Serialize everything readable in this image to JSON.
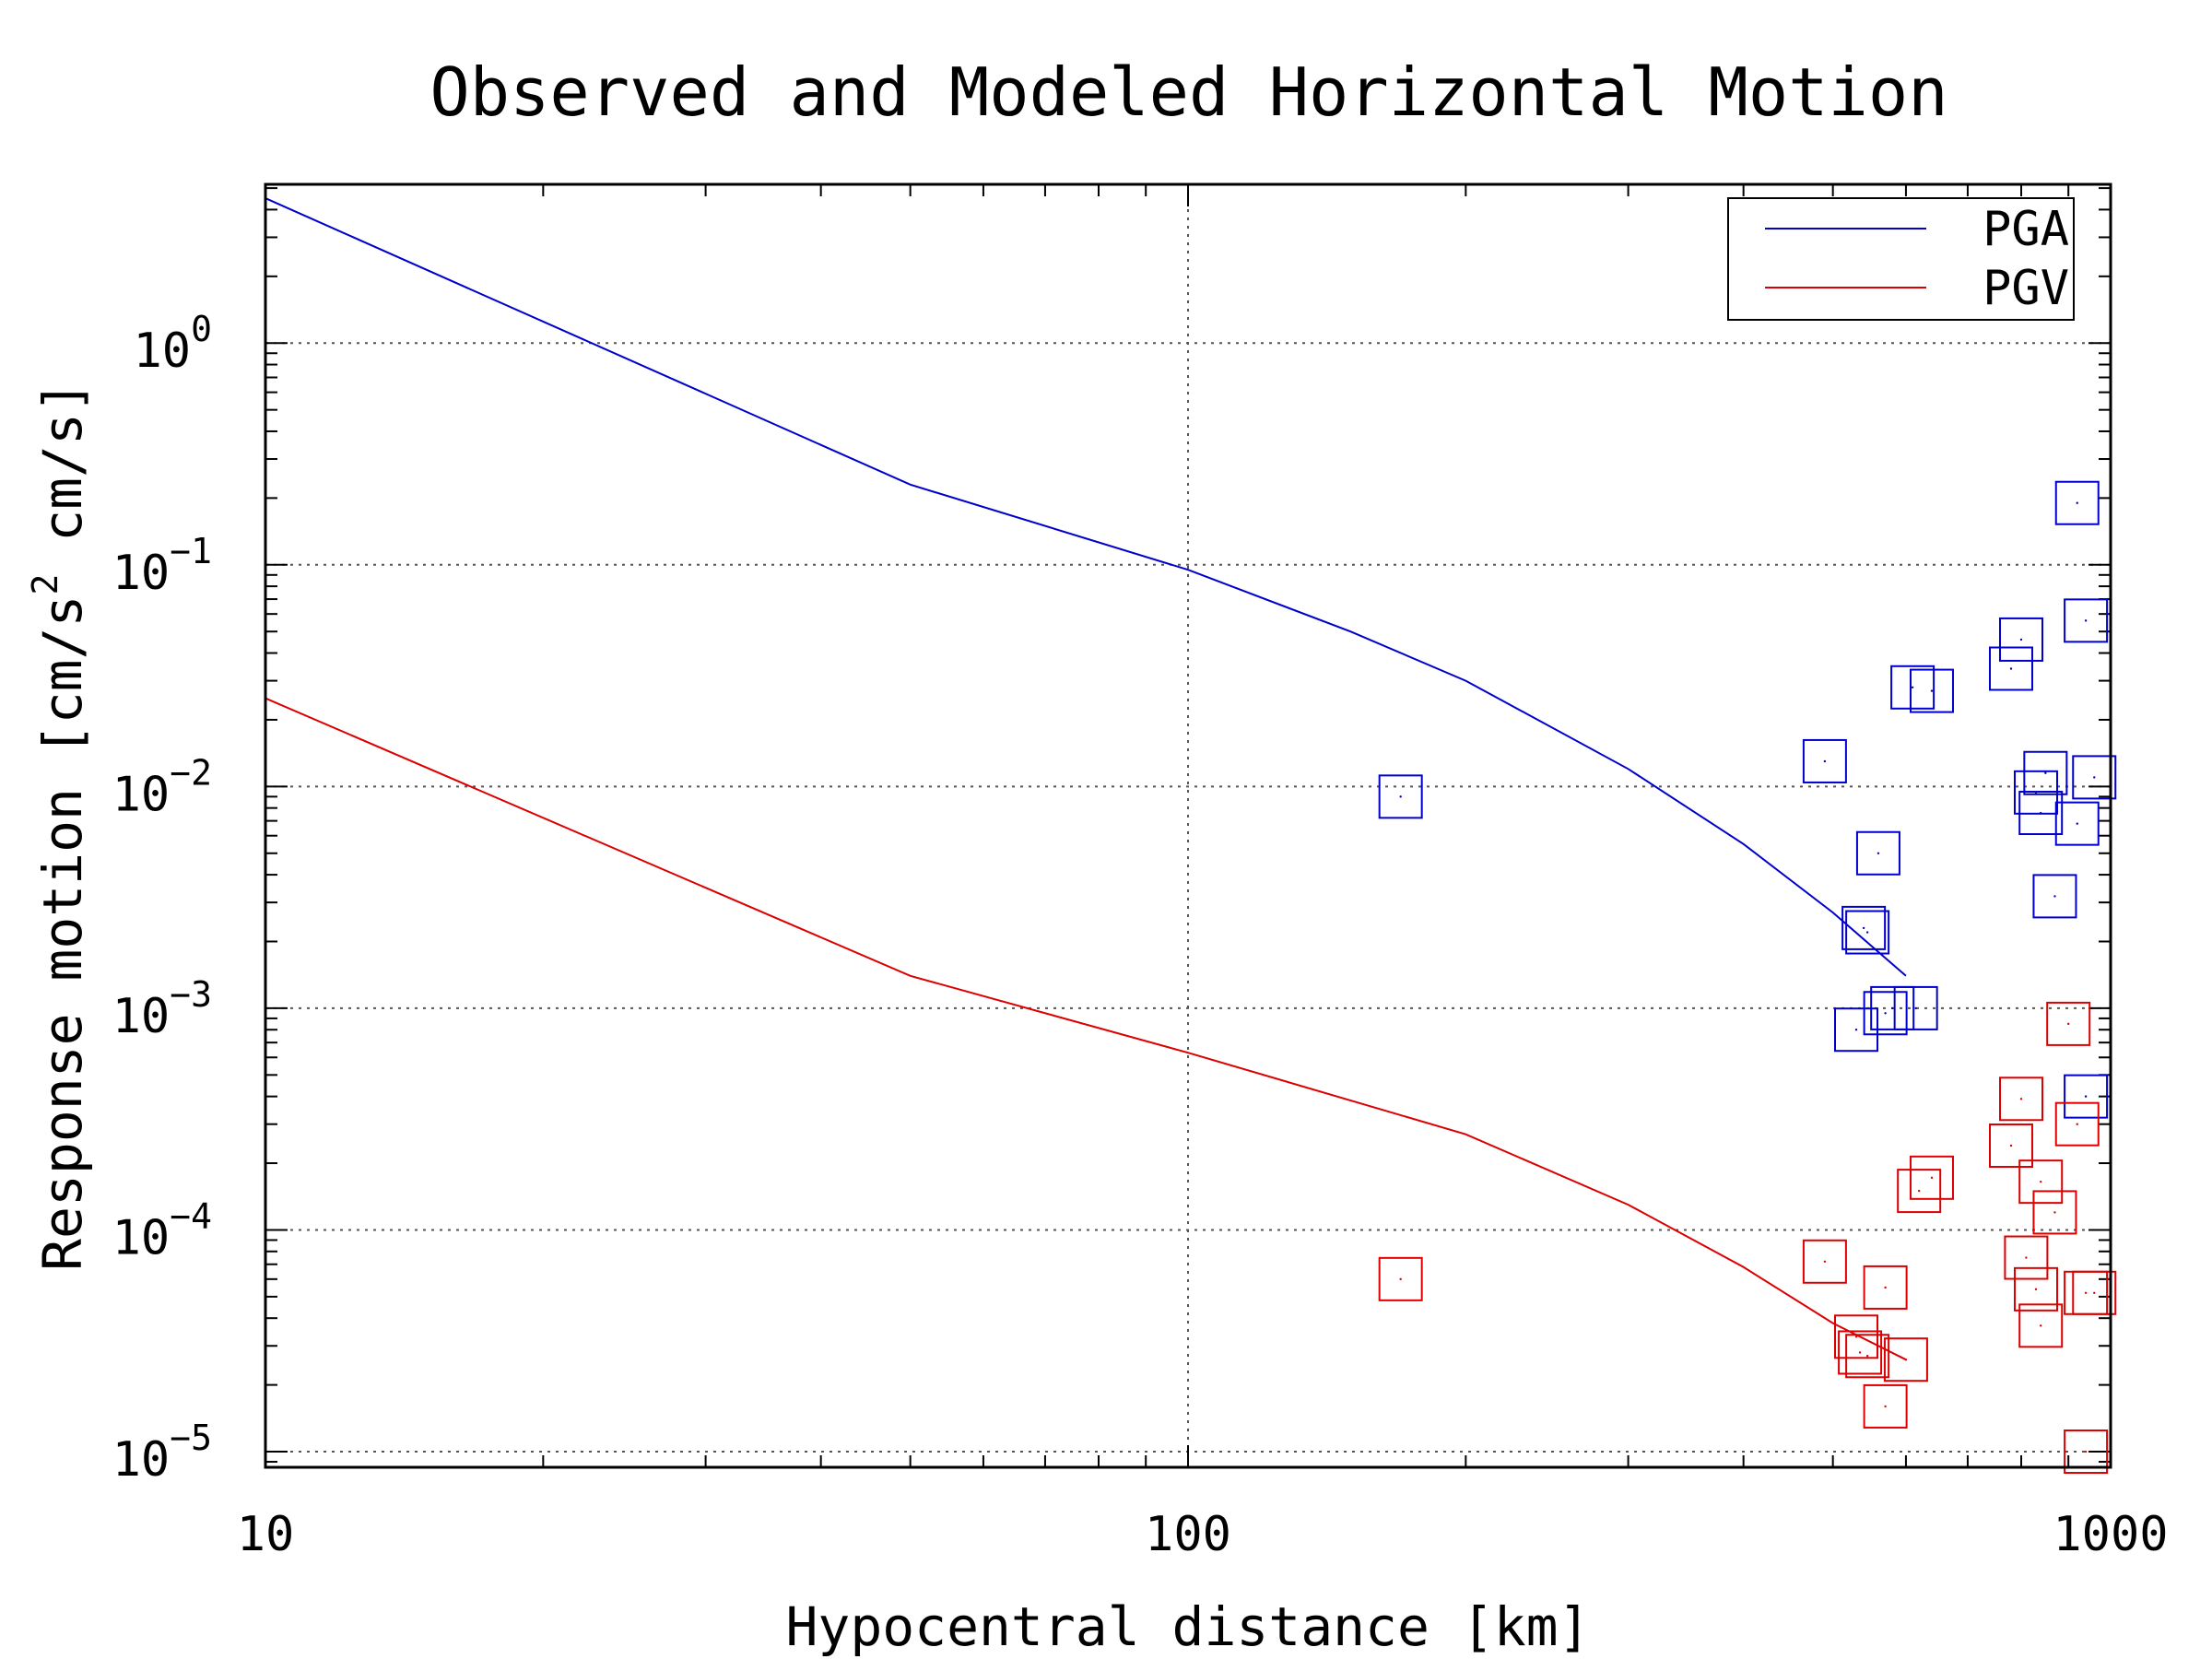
{
  "chart_data": {
    "type": "scatter",
    "title": "Observed and Modeled Horizontal Motion",
    "xlabel": "Hypocentral distance [km]",
    "ylabel_main": "Response motion  [cm/s",
    "ylabel_sup": "2",
    "ylabel_tail": "  cm/s]",
    "x_scale": "log",
    "y_scale": "log",
    "xlim": [
      10,
      1000
    ],
    "ylim": [
      8.5e-06,
      5.2
    ],
    "x_ticks": [
      {
        "value": 10,
        "label": "10"
      },
      {
        "value": 100,
        "label": "100"
      },
      {
        "value": 1000,
        "label": "1000"
      }
    ],
    "y_ticks": [
      {
        "value": 1e-05,
        "base": "10",
        "exp": "−5"
      },
      {
        "value": 0.0001,
        "base": "10",
        "exp": "−4"
      },
      {
        "value": 0.001,
        "base": "10",
        "exp": "−3"
      },
      {
        "value": 0.01,
        "base": "10",
        "exp": "−2"
      },
      {
        "value": 0.1,
        "base": "10",
        "exp": "−1"
      },
      {
        "value": 1,
        "base": "10",
        "exp": "0"
      }
    ],
    "grid": "dotted, major decades",
    "legend_position": "top-right",
    "series": [
      {
        "name": "PGA",
        "color": "#0000cc",
        "line": {
          "x": [
            10,
            50,
            100,
            150,
            200,
            300,
            400,
            500,
            600
          ],
          "y": [
            4.5,
            0.23,
            0.095,
            0.05,
            0.03,
            0.012,
            0.0055,
            0.0027,
            0.0014
          ]
        },
        "points": {
          "x": [
            170,
            490,
            540,
            545,
            560,
            570,
            530,
            580,
            610,
            615,
            640,
            780,
            800,
            830,
            850,
            840,
            870,
            920,
            940,
            920,
            960,
            940
          ],
          "y": [
            0.009,
            0.013,
            0.0023,
            0.0022,
            0.005,
            0.00095,
            0.0008,
            0.001,
            0.028,
            0.001,
            0.027,
            0.034,
            0.046,
            0.0094,
            0.0115,
            0.0076,
            0.0032,
            0.19,
            0.056,
            0.0068,
            0.011,
            0.0004
          ]
        }
      },
      {
        "name": "PGV",
        "color": "#dd0000",
        "line": {
          "x": [
            10,
            50,
            100,
            200,
            300,
            400,
            500,
            600
          ],
          "y": [
            0.025,
            0.0014,
            0.00063,
            0.00027,
            0.00013,
            6.8e-05,
            3.8e-05,
            2.6e-05
          ]
        },
        "points": {
          "x": [
            170,
            490,
            530,
            535,
            545,
            570,
            570,
            600,
            620,
            640,
            780,
            800,
            810,
            830,
            840,
            840,
            870,
            900,
            920,
            940,
            940,
            960
          ],
          "y": [
            6e-05,
            7.2e-05,
            3.3e-05,
            2.8e-05,
            2.7e-05,
            5.5e-05,
            1.6e-05,
            2.6e-05,
            0.00015,
            0.000172,
            0.00024,
            0.00039,
            7.5e-05,
            5.4e-05,
            3.7e-05,
            0.000165,
            0.00012,
            0.00085,
            0.0003,
            5.2e-05,
            1e-05,
            5.2e-05
          ]
        }
      }
    ]
  }
}
